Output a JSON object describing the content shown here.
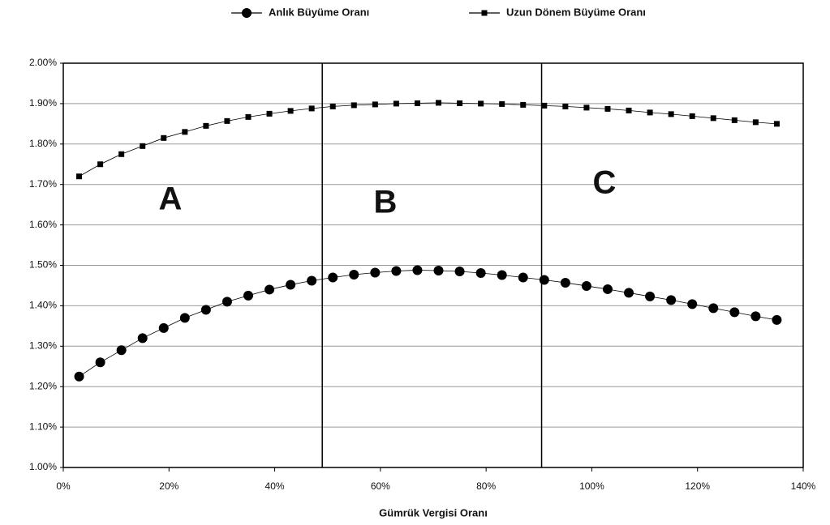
{
  "chart_data": {
    "type": "line",
    "x_label": "Gümrük Vergisi Oranı",
    "x": [
      3,
      7,
      11,
      15,
      19,
      23,
      27,
      31,
      35,
      39,
      43,
      47,
      51,
      55,
      59,
      63,
      67,
      71,
      75,
      79,
      83,
      87,
      91,
      95,
      99,
      103,
      107,
      111,
      115,
      119,
      123,
      127,
      131,
      135
    ],
    "series": [
      {
        "name": "Anlık Büyüme Oranı",
        "color": "#000000",
        "marker": "circle",
        "values": [
          1.225,
          1.26,
          1.29,
          1.32,
          1.345,
          1.37,
          1.39,
          1.41,
          1.425,
          1.44,
          1.452,
          1.462,
          1.47,
          1.477,
          1.482,
          1.486,
          1.488,
          1.487,
          1.485,
          1.481,
          1.476,
          1.47,
          1.464,
          1.457,
          1.449,
          1.441,
          1.432,
          1.423,
          1.414,
          1.404,
          1.394,
          1.384,
          1.374,
          1.365
        ]
      },
      {
        "name": "Uzun Dönem Büyüme Oranı",
        "color": "#000000",
        "marker": "square",
        "values": [
          1.72,
          1.75,
          1.775,
          1.795,
          1.815,
          1.83,
          1.845,
          1.857,
          1.867,
          1.875,
          1.882,
          1.888,
          1.893,
          1.896,
          1.898,
          1.9,
          1.901,
          1.902,
          1.901,
          1.9,
          1.899,
          1.897,
          1.895,
          1.893,
          1.89,
          1.887,
          1.883,
          1.878,
          1.874,
          1.869,
          1.864,
          1.859,
          1.854,
          1.85
        ]
      }
    ],
    "xlim": [
      0,
      140
    ],
    "xticks": [
      {
        "value": 0,
        "label": "0%"
      },
      {
        "value": 20,
        "label": "20%"
      },
      {
        "value": 40,
        "label": "40%"
      },
      {
        "value": 60,
        "label": "60%"
      },
      {
        "value": 80,
        "label": "80%"
      },
      {
        "value": 100,
        "label": "100%"
      },
      {
        "value": 120,
        "label": "120%"
      },
      {
        "value": 140,
        "label": "140%"
      }
    ],
    "ylim": [
      1,
      2
    ],
    "yticks": [
      {
        "value": 1,
        "label": "1.00%"
      },
      {
        "value": 1.1,
        "label": "1.10%"
      },
      {
        "value": 1.2,
        "label": "1.20%"
      },
      {
        "value": 1.3,
        "label": "1.30%"
      },
      {
        "value": 1.4,
        "label": "1.40%"
      },
      {
        "value": 1.5,
        "label": "1.50%"
      },
      {
        "value": 1.6,
        "label": "1.60%"
      },
      {
        "value": 1.7,
        "label": "1.70%"
      },
      {
        "value": 1.8,
        "label": "1.80%"
      },
      {
        "value": 1.9,
        "label": "1.90%"
      },
      {
        "value": 2,
        "label": "2.00%"
      }
    ],
    "vlines": [
      49,
      90.5
    ],
    "annotations": [
      "A",
      "B",
      "C"
    ],
    "grid": true,
    "legend": "top"
  }
}
